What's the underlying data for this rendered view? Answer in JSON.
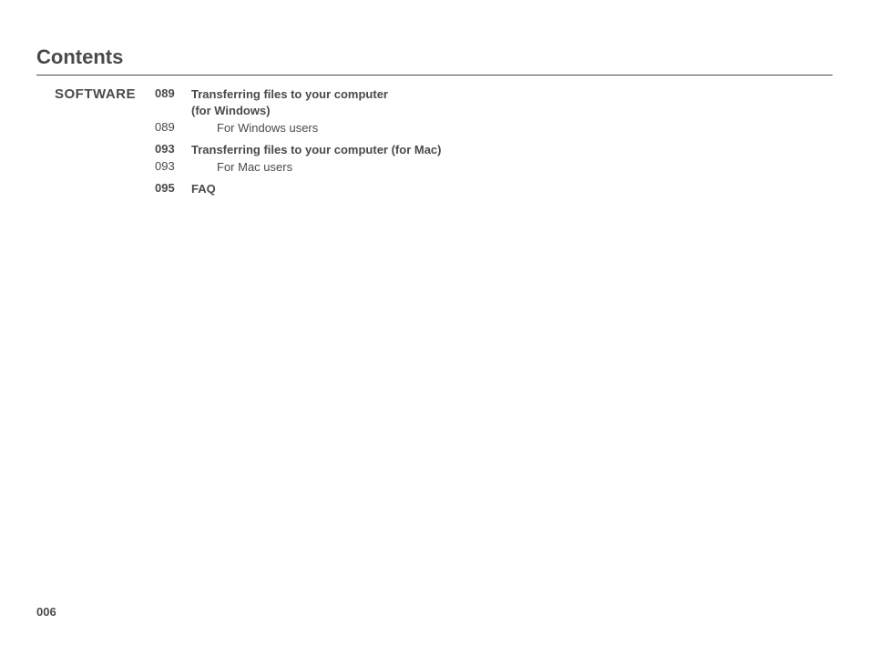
{
  "title": "Contents",
  "section_label": "SOFTWARE",
  "entries": [
    {
      "page": "089",
      "title_line1": "Transferring files to your computer",
      "title_line2": "(for Windows)",
      "bold": true,
      "indent": false
    },
    {
      "page": "089",
      "title_line1": "For Windows users",
      "title_line2": "",
      "bold": false,
      "indent": true
    },
    {
      "page": "093",
      "title_line1": "Transferring files to your computer (for Mac)",
      "title_line2": "",
      "bold": true,
      "indent": false
    },
    {
      "page": "093",
      "title_line1": "For Mac users",
      "title_line2": "",
      "bold": false,
      "indent": true
    },
    {
      "page": "095",
      "title_line1": "FAQ",
      "title_line2": "",
      "bold": true,
      "indent": false
    }
  ],
  "page_number": "006",
  "colors": {
    "text": "#4a4a4a",
    "background": "#ffffff",
    "rule": "#4a4a4a"
  }
}
